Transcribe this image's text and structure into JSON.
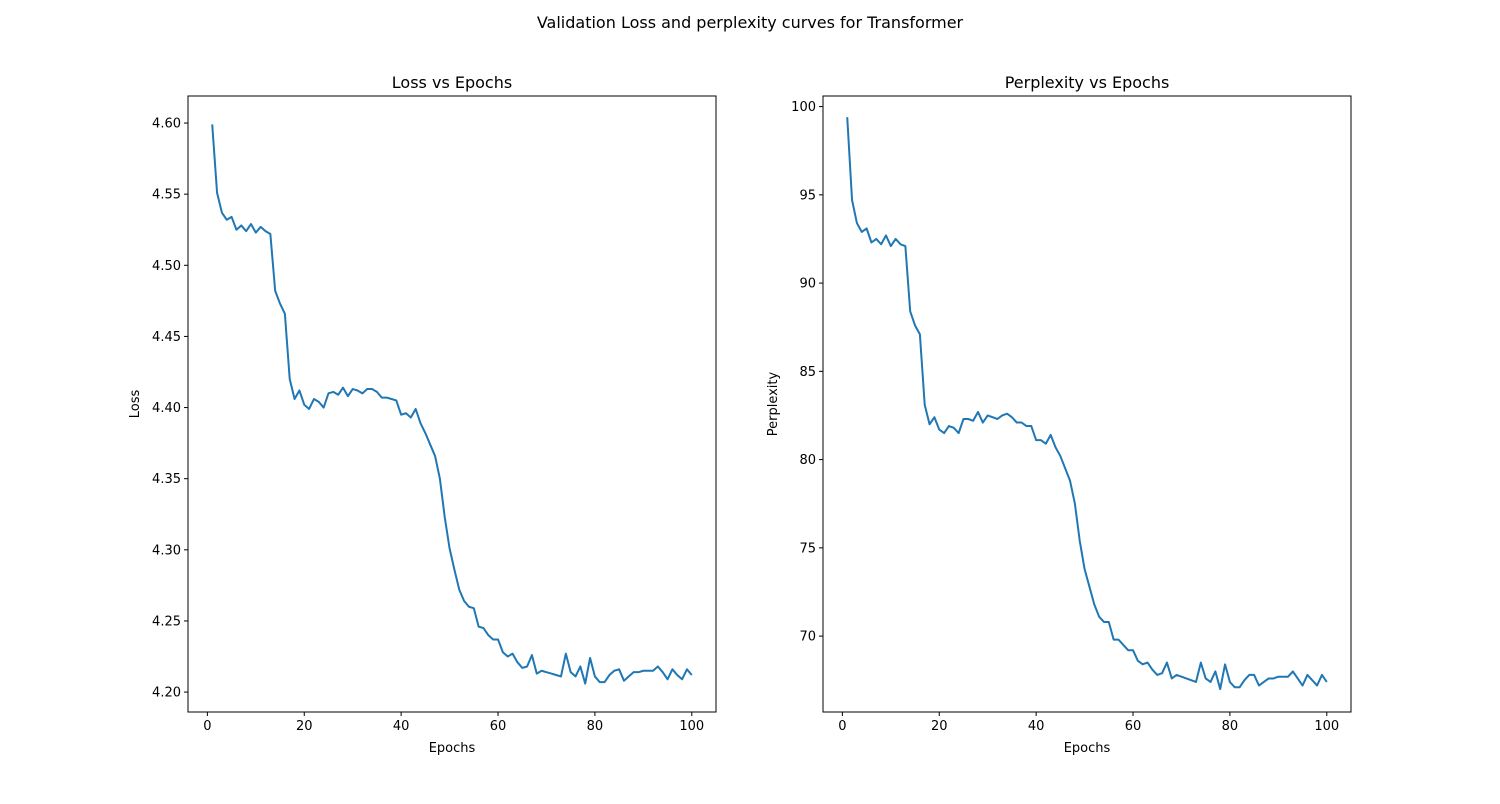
{
  "figure": {
    "suptitle": "Validation Loss and perplexity curves for Transformer"
  },
  "chart_data": [
    {
      "type": "line",
      "title": "Loss vs Epochs",
      "xlabel": "Epochs",
      "ylabel": "Loss",
      "xlim": [
        -4,
        105
      ],
      "ylim": [
        4.186,
        4.619
      ],
      "xticks": [
        0,
        20,
        40,
        60,
        80,
        100
      ],
      "yticks": [
        4.2,
        4.25,
        4.3,
        4.35,
        4.4,
        4.45,
        4.5,
        4.55,
        4.6
      ],
      "ytick_labels": [
        "4.20",
        "4.25",
        "4.30",
        "4.35",
        "4.40",
        "4.45",
        "4.50",
        "4.55",
        "4.60"
      ],
      "grid": false,
      "color": "#1f77b4",
      "series": [
        {
          "x": [
            1,
            2,
            3,
            4,
            5,
            6,
            7,
            8,
            9,
            10,
            11,
            12,
            13,
            14,
            15,
            16,
            17,
            18,
            19,
            20,
            21,
            22,
            23,
            24,
            25,
            26,
            27,
            28,
            29,
            30,
            31,
            32,
            33,
            34,
            35,
            36,
            37,
            38,
            39,
            40,
            41,
            42,
            43,
            44,
            45,
            46,
            47,
            48,
            49,
            50,
            51,
            52,
            53,
            54,
            55,
            56,
            57,
            58,
            59,
            60,
            61,
            62,
            63,
            64,
            65,
            66,
            67,
            68,
            69,
            70,
            71,
            72,
            73,
            74,
            75,
            76,
            77,
            78,
            79,
            80,
            81,
            82,
            83,
            84,
            85,
            86,
            87,
            88,
            89,
            90,
            91,
            92,
            93,
            94,
            95,
            96,
            97,
            98,
            99,
            100
          ],
          "y": [
            4.599,
            4.551,
            4.537,
            4.532,
            4.534,
            4.525,
            4.528,
            4.524,
            4.529,
            4.523,
            4.527,
            4.524,
            4.522,
            4.482,
            4.473,
            4.466,
            4.42,
            4.406,
            4.412,
            4.402,
            4.399,
            4.406,
            4.404,
            4.4,
            4.41,
            4.411,
            4.409,
            4.414,
            4.408,
            4.413,
            4.412,
            4.41,
            4.413,
            4.413,
            4.411,
            4.407,
            4.407,
            4.406,
            4.405,
            4.395,
            4.396,
            4.393,
            4.399,
            4.389,
            4.382,
            4.374,
            4.366,
            4.35,
            4.323,
            4.301,
            4.286,
            4.272,
            4.264,
            4.26,
            4.259,
            4.246,
            4.245,
            4.24,
            4.237,
            4.237,
            4.228,
            4.225,
            4.227,
            4.221,
            4.217,
            4.218,
            4.226,
            4.213,
            4.215,
            4.214,
            4.213,
            4.212,
            4.211,
            4.227,
            4.214,
            4.211,
            4.218,
            4.206,
            4.224,
            4.211,
            4.207,
            4.207,
            4.212,
            4.215,
            4.216,
            4.208,
            4.211,
            4.214,
            4.214,
            4.215,
            4.215,
            4.215,
            4.218,
            4.214,
            4.209,
            4.216,
            4.212,
            4.209,
            4.216,
            4.212
          ]
        }
      ]
    },
    {
      "type": "line",
      "title": "Perplexity vs Epochs",
      "xlabel": "Epochs",
      "ylabel": "Perplexity",
      "xlim": [
        -4,
        105
      ],
      "ylim": [
        65.7,
        100.6
      ],
      "xticks": [
        0,
        20,
        40,
        60,
        80,
        100
      ],
      "yticks": [
        70,
        75,
        80,
        85,
        90,
        95,
        100
      ],
      "ytick_labels": [
        "70",
        "75",
        "80",
        "85",
        "90",
        "95",
        "100"
      ],
      "grid": false,
      "color": "#1f77b4",
      "series": [
        {
          "x": [
            1,
            2,
            3,
            4,
            5,
            6,
            7,
            8,
            9,
            10,
            11,
            12,
            13,
            14,
            15,
            16,
            17,
            18,
            19,
            20,
            21,
            22,
            23,
            24,
            25,
            26,
            27,
            28,
            29,
            30,
            31,
            32,
            33,
            34,
            35,
            36,
            37,
            38,
            39,
            40,
            41,
            42,
            43,
            44,
            45,
            46,
            47,
            48,
            49,
            50,
            51,
            52,
            53,
            54,
            55,
            56,
            57,
            58,
            59,
            60,
            61,
            62,
            63,
            64,
            65,
            66,
            67,
            68,
            69,
            70,
            71,
            72,
            73,
            74,
            75,
            76,
            77,
            78,
            79,
            80,
            81,
            82,
            83,
            84,
            85,
            86,
            87,
            88,
            89,
            90,
            91,
            92,
            93,
            94,
            95,
            96,
            97,
            98,
            99,
            100
          ],
          "y": [
            99.4,
            94.7,
            93.4,
            92.9,
            93.1,
            92.3,
            92.5,
            92.2,
            92.7,
            92.1,
            92.5,
            92.2,
            92.1,
            88.4,
            87.6,
            87.1,
            83.1,
            82.0,
            82.4,
            81.7,
            81.5,
            81.9,
            81.8,
            81.5,
            82.3,
            82.3,
            82.2,
            82.7,
            82.1,
            82.5,
            82.4,
            82.3,
            82.5,
            82.6,
            82.4,
            82.1,
            82.1,
            81.9,
            81.9,
            81.1,
            81.1,
            80.9,
            81.4,
            80.7,
            80.2,
            79.5,
            78.8,
            77.5,
            75.4,
            73.8,
            72.8,
            71.8,
            71.1,
            70.8,
            70.8,
            69.8,
            69.8,
            69.5,
            69.2,
            69.2,
            68.6,
            68.4,
            68.5,
            68.1,
            67.8,
            67.9,
            68.5,
            67.6,
            67.8,
            67.7,
            67.6,
            67.5,
            67.4,
            68.5,
            67.6,
            67.4,
            68.0,
            67.0,
            68.4,
            67.4,
            67.1,
            67.1,
            67.5,
            67.8,
            67.8,
            67.2,
            67.4,
            67.6,
            67.6,
            67.7,
            67.7,
            67.7,
            68.0,
            67.6,
            67.2,
            67.8,
            67.5,
            67.2,
            67.8,
            67.4
          ]
        }
      ]
    }
  ]
}
